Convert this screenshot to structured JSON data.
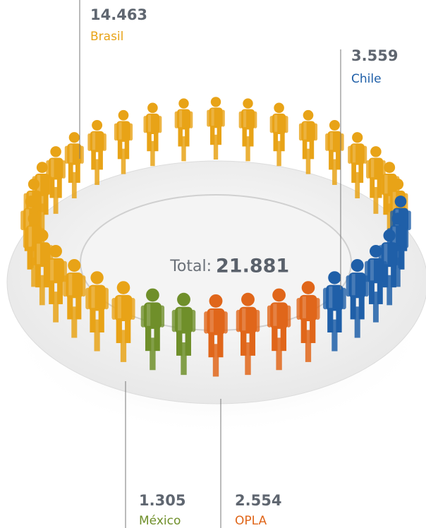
{
  "chart_data": {
    "type": "pie",
    "categories": [
      "Brasil",
      "Chile",
      "México",
      "OPLA"
    ],
    "series": [
      {
        "colors": [
          "#e8a317",
          "#1f5fa8",
          "#6f8f2a",
          "#e0661a"
        ],
        "values": [
          14463,
          3559,
          1305,
          2554
        ],
        "value_labels": [
          "14.463",
          "3.559",
          "1.305",
          "2.554"
        ]
      }
    ],
    "total_label": "Total:",
    "total": {
      "value": 21881,
      "label": "21.881"
    }
  }
}
